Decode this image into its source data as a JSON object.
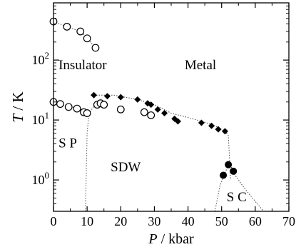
{
  "chart_data": {
    "type": "scatter",
    "title": "",
    "xlabel": {
      "var": "P",
      "unit": " / kbar"
    },
    "ylabel": {
      "var": "T",
      "unit": " / K"
    },
    "xlim": [
      0,
      70
    ],
    "ylim": [
      0.3,
      900
    ],
    "yscale": "log",
    "xticks": [
      {
        "value": 0,
        "label": "0"
      },
      {
        "value": 10,
        "label": "10"
      },
      {
        "value": 20,
        "label": "20"
      },
      {
        "value": 30,
        "label": "30"
      },
      {
        "value": 40,
        "label": "40"
      },
      {
        "value": 50,
        "label": "50"
      },
      {
        "value": 60,
        "label": "60"
      },
      {
        "value": 70,
        "label": "70"
      }
    ],
    "yticks": [
      {
        "value": 1,
        "base": "10",
        "exp": "0"
      },
      {
        "value": 10,
        "base": "10",
        "exp": "1"
      },
      {
        "value": 100,
        "base": "10",
        "exp": "2"
      }
    ],
    "phase_labels": [
      {
        "text": "Insulator",
        "x": 1.5,
        "y": 70
      },
      {
        "text": "Metal",
        "x": 39,
        "y": 70
      },
      {
        "text": "S P",
        "x": 1.5,
        "y": 3.5
      },
      {
        "text": "SDW",
        "x": 17,
        "y": 1.4
      },
      {
        "text": "S C",
        "x": 51.5,
        "y": 0.44
      }
    ],
    "series": [
      {
        "marker": "open-circle",
        "points": [
          [
            0,
            440
          ],
          [
            4,
            360
          ],
          [
            8,
            300
          ],
          [
            10,
            230
          ],
          [
            12.5,
            160
          ]
        ]
      },
      {
        "marker": "open-circle",
        "points": [
          [
            0,
            20
          ],
          [
            2,
            18.5
          ],
          [
            4.5,
            16.5
          ],
          [
            7,
            15.5
          ],
          [
            9,
            13.5
          ],
          [
            10,
            13
          ],
          [
            13,
            18
          ],
          [
            14,
            19
          ],
          [
            15,
            18
          ],
          [
            20,
            15
          ],
          [
            27,
            13.5
          ],
          [
            29,
            12
          ]
        ]
      },
      {
        "marker": "filled-diamond",
        "points": [
          [
            12,
            26
          ],
          [
            16,
            25
          ],
          [
            20,
            24
          ],
          [
            25,
            22
          ],
          [
            28,
            19
          ],
          [
            29,
            18
          ],
          [
            31,
            15
          ],
          [
            33,
            13
          ],
          [
            36,
            10.5
          ],
          [
            37,
            9.5
          ],
          [
            44,
            9
          ],
          [
            47,
            8
          ],
          [
            49,
            7
          ],
          [
            51,
            6.5
          ]
        ]
      },
      {
        "marker": "filled-circle",
        "points": [
          [
            50.5,
            1.2
          ],
          [
            52,
            1.8
          ],
          [
            53.5,
            1.4
          ]
        ]
      }
    ],
    "guide_lines": [
      {
        "style": "dotted",
        "points": [
          [
            0,
            440
          ],
          [
            4,
            360
          ],
          [
            8,
            300
          ],
          [
            10,
            230
          ],
          [
            12.5,
            160
          ]
        ]
      },
      {
        "style": "dotted",
        "points": [
          [
            0,
            20
          ],
          [
            4,
            17
          ],
          [
            7,
            16
          ],
          [
            9,
            14.5
          ],
          [
            10,
            13.5
          ]
        ]
      },
      {
        "style": "dotted",
        "points": [
          [
            12,
            26
          ],
          [
            18,
            26
          ],
          [
            25,
            22
          ],
          [
            30,
            18
          ],
          [
            35,
            13
          ],
          [
            40,
            11
          ],
          [
            45,
            9.2
          ],
          [
            48,
            8
          ],
          [
            51,
            6.5
          ],
          [
            52,
            5.5
          ],
          [
            52.7,
            1
          ]
        ]
      },
      {
        "style": "dotted",
        "points": [
          [
            9.5,
            0.3
          ],
          [
            10,
            6
          ],
          [
            10.5,
            12
          ],
          [
            11,
            14
          ],
          [
            12,
            17
          ],
          [
            13,
            20
          ]
        ]
      },
      {
        "style": "dotted",
        "points": [
          [
            48,
            0.3
          ],
          [
            49.5,
            0.8
          ],
          [
            51,
            1.3
          ],
          [
            52,
            1.8
          ],
          [
            53,
            1.6
          ],
          [
            54,
            1.2
          ],
          [
            57,
            0.7
          ],
          [
            62.5,
            0.3
          ]
        ]
      }
    ]
  }
}
